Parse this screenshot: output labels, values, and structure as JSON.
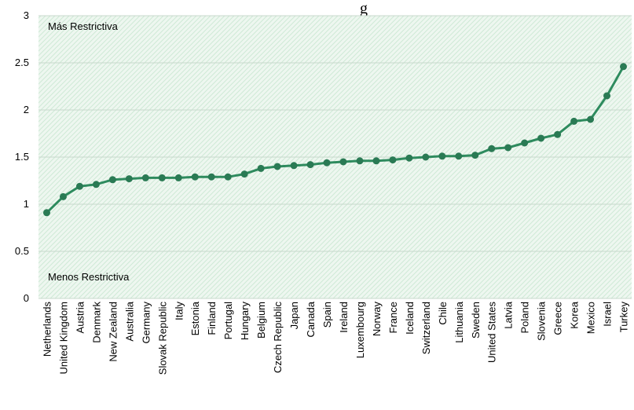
{
  "chart_data": {
    "type": "line",
    "title": "g",
    "xlabel": "",
    "ylabel": "",
    "ylim": [
      0,
      3
    ],
    "yticks": [
      "0",
      "0.5",
      "1",
      "1.5",
      "2",
      "2.5",
      "3"
    ],
    "grid": true,
    "annotations": {
      "top": "Más Restrictiva",
      "bottom": "Menos Restrictiva"
    },
    "categories": [
      "Netherlands",
      "United Kingdom",
      "Austria",
      "Denmark",
      "New Zealand",
      "Australia",
      "Germany",
      "Slovak Republic",
      "Italy",
      "Estonia",
      "Finland",
      "Portugal",
      "Hungary",
      "Belgium",
      "Czech Republic",
      "Japan",
      "Canada",
      "Spain",
      "Ireland",
      "Luxembourg",
      "Norway",
      "France",
      "Iceland",
      "Switzerland",
      "Chile",
      "Lithuania",
      "Sweden",
      "United States",
      "Latvia",
      "Poland",
      "Slovenia",
      "Greece",
      "Korea",
      "Mexico",
      "Israel",
      "Turkey"
    ],
    "series": [
      {
        "values": [
          0.91,
          1.08,
          1.19,
          1.21,
          1.26,
          1.27,
          1.28,
          1.28,
          1.28,
          1.29,
          1.29,
          1.29,
          1.32,
          1.38,
          1.4,
          1.41,
          1.42,
          1.44,
          1.45,
          1.46,
          1.46,
          1.47,
          1.49,
          1.5,
          1.51,
          1.51,
          1.52,
          1.59,
          1.6,
          1.65,
          1.7,
          1.74,
          1.88,
          1.9,
          2.15,
          2.46
        ]
      }
    ],
    "colors": {
      "line": "#2e8b5e",
      "marker": "#2a7a54",
      "background": "#eef7f0",
      "hatch": "#cfe9d6",
      "grid": "#c8d8cc"
    }
  }
}
